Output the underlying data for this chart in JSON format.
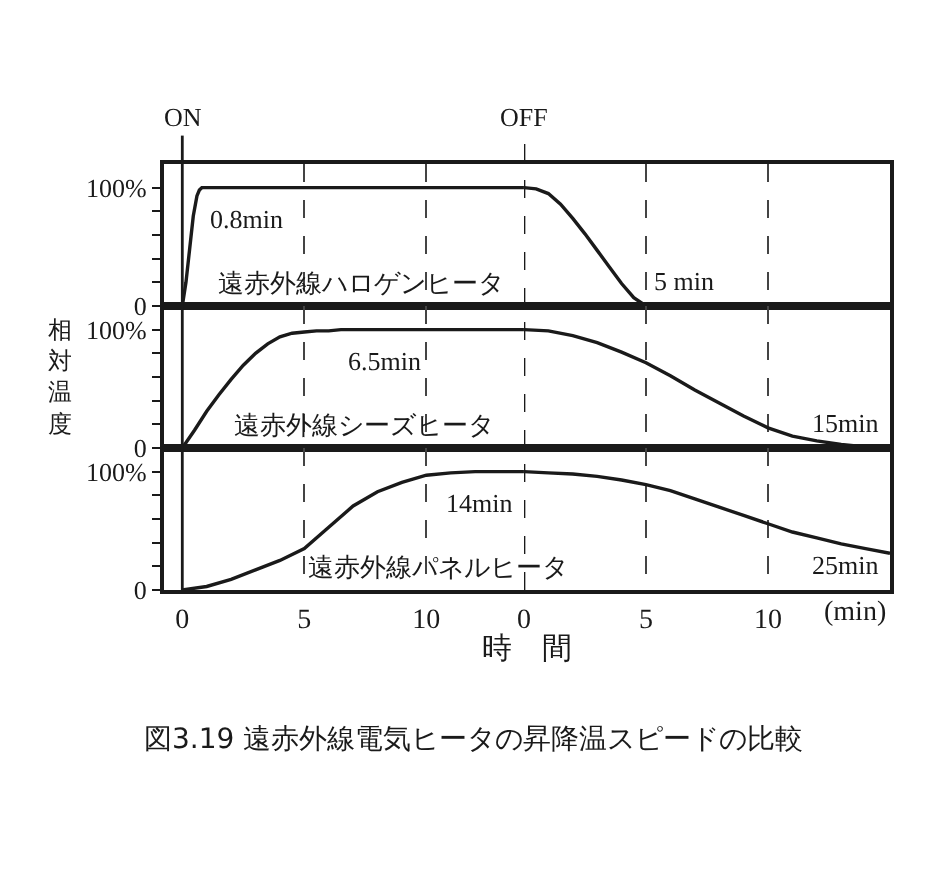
{
  "chart_data": [
    {
      "type": "line",
      "xlim": [
        -0.75,
        14
      ],
      "xticks": [
        0,
        5,
        10
      ],
      "ylim": [
        0,
        120
      ],
      "yticks": [
        0,
        {
          "value": 20,
          "label": null
        },
        {
          "value": 40,
          "label": null
        },
        {
          "value": 60,
          "label": null
        },
        {
          "value": 80,
          "label": null
        },
        {
          "value": 100,
          "label": "100%"
        }
      ],
      "tick_labels": "y",
      "grid": "x",
      "ref_lines": [
        {
          "axis": "x",
          "value": 0,
          "label": "ON",
          "line_style": "solid"
        }
      ],
      "series": [
        {
          "name": "遠赤外線ハロゲンヒータ",
          "color": "#1a1a1a",
          "x": [
            0,
            0.15,
            0.3,
            0.45,
            0.6,
            0.7,
            0.8,
            14
          ],
          "values": [
            0,
            20,
            48,
            76,
            93,
            98,
            100,
            100
          ]
        }
      ],
      "annotations": [
        {
          "text": "0.8min",
          "x": 0.8,
          "y": 100
        }
      ]
    },
    {
      "type": "line",
      "xlim": [
        0,
        15
      ],
      "xticks": [
        0,
        5,
        10
      ],
      "ylim": [
        0,
        120
      ],
      "tick_labels": false,
      "grid": "x",
      "ref_lines": [
        {
          "axis": "x",
          "value": 0,
          "label": "OFF",
          "line_style": "dashed"
        }
      ],
      "series": [
        {
          "color": "#1a1a1a",
          "x": [
            0,
            0.5,
            1,
            1.5,
            2,
            2.5,
            3,
            3.5,
            4,
            4.5,
            5
          ],
          "values": [
            100,
            99,
            95,
            86,
            74,
            61,
            47,
            33,
            19,
            7,
            0
          ]
        }
      ],
      "annotations": [
        {
          "text": "5 min",
          "x": 5,
          "y": 0
        }
      ]
    },
    {
      "type": "line",
      "xlim": [
        -0.75,
        14
      ],
      "xticks": [
        0,
        5,
        10
      ],
      "ylim": [
        0,
        120
      ],
      "yticks": [
        0,
        {
          "value": 20,
          "label": null
        },
        {
          "value": 40,
          "label": null
        },
        {
          "value": 60,
          "label": null
        },
        {
          "value": 80,
          "label": null
        },
        {
          "value": 100,
          "label": "100%"
        }
      ],
      "tick_labels": "y",
      "grid": "x",
      "ylabel": "相対温度",
      "ref_lines": [
        {
          "axis": "x",
          "value": 0,
          "line_style": "solid"
        }
      ],
      "series": [
        {
          "name": "遠赤外線シーズヒータ",
          "color": "#1a1a1a",
          "x": [
            0,
            0.5,
            1,
            1.5,
            2,
            2.5,
            3,
            3.5,
            4,
            4.5,
            5,
            5.5,
            6,
            6.5,
            14
          ],
          "values": [
            0,
            15,
            31,
            45,
            58,
            70,
            80,
            88,
            94,
            97,
            98,
            99,
            99,
            100,
            100
          ]
        }
      ],
      "annotations": [
        {
          "text": "6.5min",
          "x": 6.5,
          "y": 100
        }
      ]
    },
    {
      "type": "line",
      "xlim": [
        0,
        15
      ],
      "xticks": [
        0,
        5,
        10
      ],
      "ylim": [
        0,
        120
      ],
      "tick_labels": false,
      "grid": "x",
      "ref_lines": [
        {
          "axis": "x",
          "value": 0,
          "line_style": "dashed"
        }
      ],
      "series": [
        {
          "color": "#1a1a1a",
          "x": [
            0,
            1,
            2,
            3,
            4,
            5,
            6,
            7,
            8,
            9,
            10,
            11,
            12,
            13,
            14,
            15
          ],
          "values": [
            100,
            99,
            95,
            89,
            81,
            72,
            61,
            49,
            38,
            27,
            17,
            10,
            6,
            3,
            1,
            0
          ]
        }
      ],
      "annotations": [
        {
          "text": "15min",
          "x": 15,
          "y": 0
        }
      ]
    },
    {
      "type": "line",
      "xlim": [
        -0.75,
        14
      ],
      "xticks": [
        0,
        5,
        10
      ],
      "ylim": [
        0,
        120
      ],
      "yticks": [
        0,
        {
          "value": 20,
          "label": null
        },
        {
          "value": 40,
          "label": null
        },
        {
          "value": 60,
          "label": null
        },
        {
          "value": 80,
          "label": null
        },
        {
          "value": 100,
          "label": "100%"
        }
      ],
      "grid": "x",
      "xlabel": "時　間",
      "ref_lines": [
        {
          "axis": "x",
          "value": 0,
          "line_style": "solid"
        }
      ],
      "series": [
        {
          "name": "遠赤外線パネルヒータ",
          "color": "#1a1a1a",
          "x": [
            0,
            1,
            2,
            3,
            4,
            5,
            6,
            7,
            8,
            9,
            10,
            11,
            12,
            13,
            14
          ],
          "values": [
            0,
            3,
            9,
            17,
            25,
            35,
            53,
            71,
            83,
            91,
            97,
            99,
            100,
            100,
            100
          ]
        }
      ],
      "annotations": [
        {
          "text": "14min",
          "x": 14,
          "y": 100
        }
      ]
    },
    {
      "type": "line",
      "xlim": [
        0,
        15
      ],
      "xticks": [
        0,
        5,
        10
      ],
      "ylim": [
        0,
        120
      ],
      "tick_labels": "x",
      "grid": "x",
      "xlabel": "(min)",
      "title": "図3.19 遠赤外線電気ヒータの昇降温スピードの比較",
      "ref_lines": [
        {
          "axis": "x",
          "value": 0,
          "line_style": "dashed"
        }
      ],
      "series": [
        {
          "color": "#1a1a1a",
          "x": [
            0,
            1,
            2,
            3,
            4,
            5,
            6,
            7,
            8,
            9,
            10,
            11,
            12,
            13,
            14,
            15
          ],
          "values": [
            100,
            99,
            98,
            96,
            93,
            89,
            84,
            77,
            70,
            63,
            56,
            49,
            44,
            39,
            35,
            31
          ]
        }
      ],
      "annotations": [
        "25min"
      ]
    }
  ]
}
